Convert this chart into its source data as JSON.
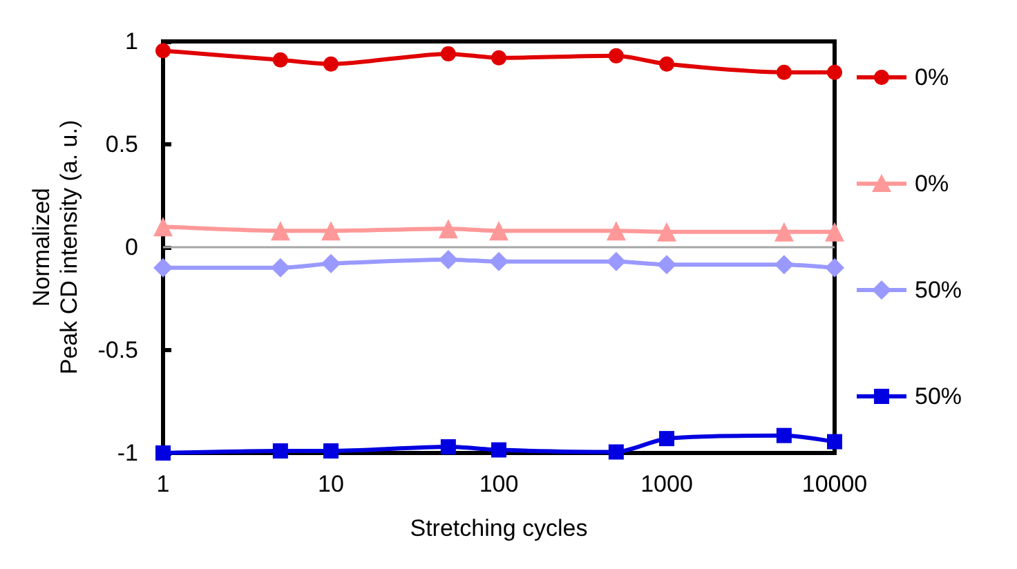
{
  "chart_data": {
    "type": "line",
    "xlabel": "Stretching cycles",
    "ylabel": "Normalized\nPeak CD intensity (a. u.)",
    "x": [
      1,
      5,
      10,
      50,
      100,
      500,
      1000,
      5000,
      10000
    ],
    "series": [
      {
        "name": "0%",
        "color": "#e00000",
        "marker": "circle",
        "values": [
          0.955,
          0.91,
          0.89,
          0.94,
          0.92,
          0.93,
          0.89,
          0.85,
          0.85
        ]
      },
      {
        "name": "0%",
        "color": "#ff9999",
        "marker": "triangle",
        "values": [
          0.1,
          0.08,
          0.08,
          0.09,
          0.08,
          0.08,
          0.075,
          0.075,
          0.075
        ]
      },
      {
        "name": "50%",
        "color": "#9999ff",
        "marker": "diamond",
        "values": [
          -0.1,
          -0.1,
          -0.08,
          -0.06,
          -0.07,
          -0.07,
          -0.085,
          -0.085,
          -0.1
        ]
      },
      {
        "name": "50%",
        "color": "#0000e0",
        "marker": "square",
        "values": [
          -1.0,
          -0.99,
          -0.99,
          -0.97,
          -0.985,
          -0.995,
          -0.93,
          -0.915,
          -0.945
        ]
      }
    ],
    "log": "x",
    "xlim": [
      1,
      10000
    ],
    "xticks": [
      1,
      10,
      100,
      1000,
      10000
    ],
    "ylim": [
      -1,
      1
    ],
    "yticks": [
      -1,
      -0.5,
      0,
      0.5,
      1
    ],
    "ref_lines": [
      {
        "axis": "y",
        "value": 0,
        "color": "#a6a6a6"
      }
    ],
    "grid": false,
    "legend": "right"
  }
}
